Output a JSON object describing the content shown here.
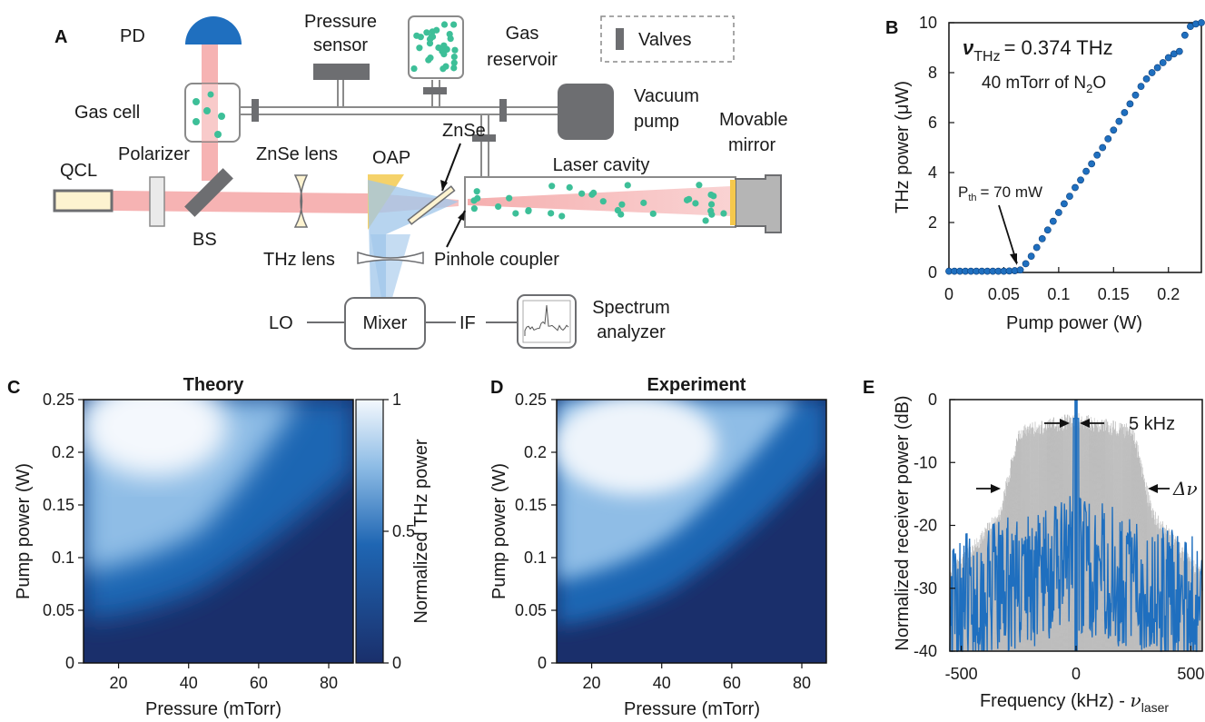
{
  "panels": {
    "a": "A",
    "b": "B",
    "c": "C",
    "d": "D",
    "e": "E"
  },
  "schematic": {
    "pd": "PD",
    "pressure_sensor_1": "Pressure",
    "pressure_sensor_2": "sensor",
    "gas_reservoir_1": "Gas",
    "gas_reservoir_2": "reservoir",
    "valves_legend": "Valves",
    "gas_cell": "Gas cell",
    "vacuum_pump_1": "Vacuum",
    "vacuum_pump_2": "pump",
    "znse_window": "ZnSe",
    "movable_mirror_1": "Movable",
    "movable_mirror_2": "mirror",
    "polarizer": "Polarizer",
    "znse_lens": "ZnSe lens",
    "oap": "OAP",
    "laser_cavity": "Laser cavity",
    "qcl": "QCL",
    "bs": "BS",
    "thz_lens": "THz lens",
    "pinhole_coupler": "Pinhole coupler",
    "lo": "LO",
    "mixer": "Mixer",
    "if": "IF",
    "spectrum_analyzer_1": "Spectrum",
    "spectrum_analyzer_2": "analyzer",
    "colors": {
      "laser_beam": "#f4a6a6",
      "thz_beam": "#9fc5ea",
      "gas": "#3dbf98",
      "pd": "#1f6fbf",
      "oap": "#f5d26a",
      "qcl": "#fdf3d0",
      "grey": "#6d6e71"
    }
  },
  "chart_data": [
    {
      "panel": "B",
      "type": "scatter",
      "xlabel": "Pump power (W)",
      "ylabel": "THz power (μW)",
      "xlim": [
        0,
        0.23
      ],
      "ylim": [
        0,
        10
      ],
      "xticks": [
        "0",
        "0.05",
        "0.1",
        "0.15",
        "0.2"
      ],
      "yticks": [
        "0",
        "2",
        "4",
        "6",
        "8",
        "10"
      ],
      "annotation_nu_symbol": "ν",
      "annotation_nu_sub": "THz",
      "annotation_nu_value": "= 0.374 THz",
      "annotation_gas": "40 mTorr of N",
      "annotation_gas_sub": "2",
      "annotation_gas_end": "O",
      "annotation_pth": "P",
      "annotation_pth_sub": "th",
      "annotation_pth_value": "= 70 mW",
      "marker_color": "#1f6fbf",
      "series": [
        {
          "points": [
            [
              0,
              0.05
            ],
            [
              0.005,
              0.05
            ],
            [
              0.01,
              0.05
            ],
            [
              0.015,
              0.05
            ],
            [
              0.02,
              0.05
            ],
            [
              0.025,
              0.05
            ],
            [
              0.03,
              0.05
            ],
            [
              0.035,
              0.05
            ],
            [
              0.04,
              0.05
            ],
            [
              0.045,
              0.05
            ],
            [
              0.05,
              0.05
            ],
            [
              0.055,
              0.06
            ],
            [
              0.06,
              0.07
            ],
            [
              0.065,
              0.1
            ],
            [
              0.07,
              0.35
            ],
            [
              0.075,
              0.65
            ],
            [
              0.08,
              1.0
            ],
            [
              0.085,
              1.35
            ],
            [
              0.09,
              1.7
            ],
            [
              0.095,
              2.05
            ],
            [
              0.1,
              2.4
            ],
            [
              0.105,
              2.75
            ],
            [
              0.11,
              3.05
            ],
            [
              0.115,
              3.4
            ],
            [
              0.12,
              3.7
            ],
            [
              0.125,
              4.05
            ],
            [
              0.13,
              4.35
            ],
            [
              0.135,
              4.7
            ],
            [
              0.14,
              5.0
            ],
            [
              0.145,
              5.35
            ],
            [
              0.15,
              5.7
            ],
            [
              0.155,
              6.05
            ],
            [
              0.16,
              6.4
            ],
            [
              0.165,
              6.75
            ],
            [
              0.17,
              7.1
            ],
            [
              0.175,
              7.45
            ],
            [
              0.18,
              7.75
            ],
            [
              0.185,
              8.0
            ],
            [
              0.19,
              8.2
            ],
            [
              0.195,
              8.4
            ],
            [
              0.2,
              8.6
            ],
            [
              0.205,
              8.75
            ],
            [
              0.21,
              8.85
            ],
            [
              0.215,
              9.5
            ],
            [
              0.22,
              9.85
            ],
            [
              0.225,
              9.95
            ],
            [
              0.23,
              10.0
            ]
          ]
        }
      ]
    },
    {
      "panel": "C",
      "type": "heatmap",
      "title": "Theory",
      "xlabel": "Pressure (mTorr)",
      "ylabel": "Pump power (W)",
      "xlim": [
        10,
        87
      ],
      "ylim": [
        0,
        0.25
      ],
      "xticks": [
        "20",
        "40",
        "60",
        "80"
      ],
      "yticks": [
        "0",
        "0.05",
        "0.1",
        "0.15",
        "0.2",
        "0.25"
      ],
      "colorbar_label": "Normalized THz power",
      "colorbar_ticks": [
        "0",
        "0.5",
        "1"
      ],
      "colormap": [
        "#1a2f6b",
        "#1f66b3",
        "#f4f8fd"
      ]
    },
    {
      "panel": "D",
      "type": "heatmap",
      "title": "Experiment",
      "xlabel": "Pressure (mTorr)",
      "ylabel": "Pump power (W)",
      "xlim": [
        10,
        87
      ],
      "ylim": [
        0,
        0.25
      ],
      "xticks": [
        "20",
        "40",
        "60",
        "80"
      ],
      "yticks": [
        "0",
        "0.05",
        "0.1",
        "0.15",
        "0.2",
        "0.25"
      ]
    },
    {
      "panel": "E",
      "type": "line",
      "xlabel": "Frequency (kHz) - ",
      "xlabel_nu": "ν",
      "xlabel_sub": "laser",
      "ylabel": "Normalized receiver power (dB)",
      "xlim": [
        -550,
        550
      ],
      "ylim": [
        -40,
        0
      ],
      "xticks": [
        "-500",
        "0",
        "500"
      ],
      "yticks": [
        "0",
        "-10",
        "-20",
        "-30",
        "-40"
      ],
      "annotation_linewidth": "5 kHz",
      "annotation_delta": "Δν",
      "series_colors": [
        "#c8c8c8",
        "#1f6fbf"
      ]
    }
  ]
}
